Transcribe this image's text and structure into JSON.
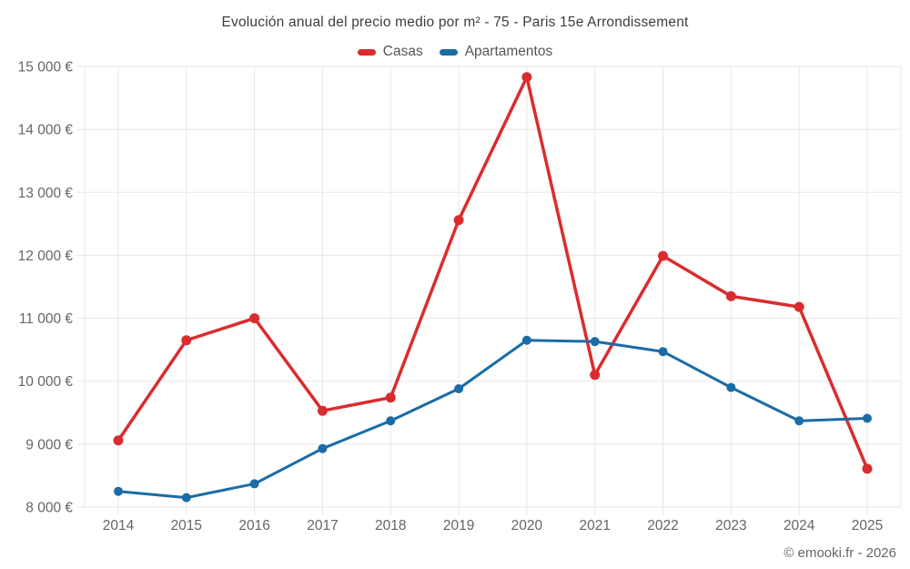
{
  "chart_data": {
    "type": "line",
    "title": "Evolución anual del precio medio por m² - 75 - Paris 15e Arrondissement",
    "categories": [
      "2014",
      "2015",
      "2016",
      "2017",
      "2018",
      "2019",
      "2020",
      "2021",
      "2022",
      "2023",
      "2024",
      "2025"
    ],
    "series": [
      {
        "name": "Casas",
        "color": "#da2c2f",
        "values": [
          9060,
          10650,
          11000,
          9530,
          9740,
          12560,
          14830,
          10100,
          11990,
          11350,
          11180,
          8610
        ]
      },
      {
        "name": "Apartamentos",
        "color": "#1b6ca6",
        "values": [
          8250,
          8150,
          8370,
          8930,
          9370,
          9880,
          10650,
          10630,
          10470,
          9900,
          9370,
          9410
        ]
      }
    ],
    "ylim": [
      8000,
      15000
    ],
    "ytick_step": 1000,
    "ytick_labels": [
      "8 000 €",
      "9 000 €",
      "10 000 €",
      "11 000 €",
      "12 000 €",
      "13 000 €",
      "14 000 €",
      "15 000 €"
    ],
    "grid": true,
    "legend_position": "top",
    "unit": "€"
  },
  "footer": {
    "credit": "© emooki.fr - 2026"
  },
  "colors": {
    "grid": "#e7e7e7",
    "axis_label": "#666666",
    "title": "#3d3d3d",
    "legend_label": "#565656",
    "background": "#ffffff"
  }
}
